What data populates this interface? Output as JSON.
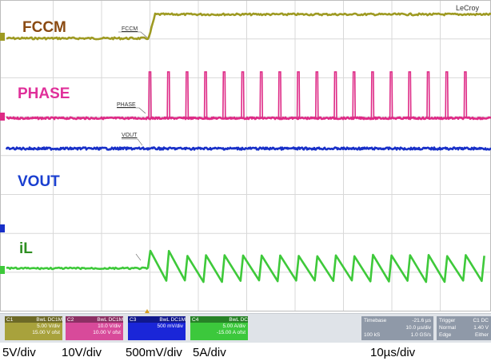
{
  "traces": [
    {
      "name": "FCCM",
      "color": "#8a4a12",
      "trace_color": "#9e9a22"
    },
    {
      "name": "PHASE",
      "color": "#e0309a",
      "trace_color": "#de2a86"
    },
    {
      "name": "VOUT",
      "color": "#1a3fd0",
      "trace_color": "#1830c8"
    },
    {
      "name": "iL",
      "color": "#2e8f22",
      "trace_color": "#3ec93a"
    }
  ],
  "inline_tags": {
    "fccm": "FCCM",
    "phase": "PHASE",
    "vout": "VOUT"
  },
  "brand": "LeCroy",
  "channels": [
    {
      "id": "C1",
      "coupling": "BwL DC1M",
      "scale": "5.00 V/div",
      "offset": "15.00 V ofst",
      "color": "#a8a23c"
    },
    {
      "id": "C2",
      "coupling": "BwL DC1M",
      "scale": "10.0 V/div",
      "offset": "10.00 V ofst",
      "color": "#d84a9a"
    },
    {
      "id": "C3",
      "coupling": "BwL DC1M",
      "scale": "500 mV/div",
      "offset": "",
      "color": "#1a26d8"
    },
    {
      "id": "C4",
      "coupling": "BwL DC",
      "scale": "5.00 A/div",
      "offset": "-15.00 A ofst",
      "color": "#3cc83c"
    }
  ],
  "timebase": {
    "label": "Timebase",
    "position": "-21.6 µs",
    "per_div": "10.0 µs/div",
    "samples": "100 kS",
    "rate": "1.0 GS/s"
  },
  "trigger": {
    "label": "Trigger",
    "channel": "C1 DC",
    "mode": "Normal",
    "level": "1.40 V",
    "type": "Edge",
    "slope": "Either"
  },
  "captions": {
    "ch1": "5V/div",
    "ch2": "10V/div",
    "ch3": "500mV/div",
    "ch4": "5A/div",
    "time": "10µs/div"
  }
}
